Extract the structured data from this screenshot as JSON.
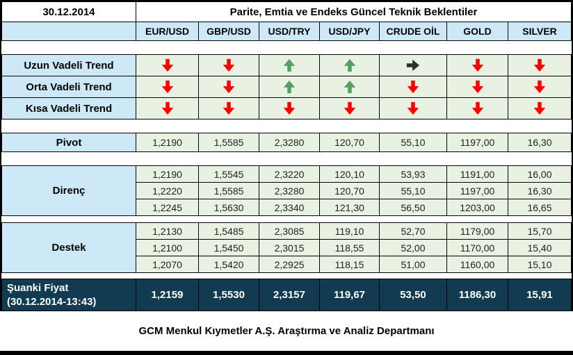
{
  "meta": {
    "date": "30.12.2014",
    "title": "Parite, Emtia ve Endeks Güncel Teknik Beklentiler",
    "footer": "GCM Menkul Kıymetler A.Ş. Araştırma ve Analiz Departmanı"
  },
  "columns": [
    "EUR/USD",
    "GBP/USD",
    "USD/TRY",
    "USD/JPY",
    "CRUDE OİL",
    "GOLD",
    "SILVER"
  ],
  "trends": {
    "rows": [
      {
        "label": "Uzun Vadeli Trend",
        "arrows": [
          "down",
          "down",
          "up",
          "up",
          "right",
          "down",
          "down"
        ]
      },
      {
        "label": "Orta Vadeli Trend",
        "arrows": [
          "down",
          "down",
          "up",
          "up",
          "down",
          "down",
          "down"
        ]
      },
      {
        "label": "Kısa Vadeli Trend",
        "arrows": [
          "down",
          "down",
          "down",
          "down",
          "down",
          "down",
          "down"
        ]
      }
    ]
  },
  "pivot": {
    "label": "Pivot",
    "values": [
      "1,2190",
      "1,5585",
      "2,3280",
      "120,70",
      "55,10",
      "1197,00",
      "16,30"
    ]
  },
  "resistance": {
    "label": "Direnç",
    "rows": [
      [
        "1,2190",
        "1,5545",
        "2,3220",
        "120,10",
        "53,93",
        "1191,00",
        "16,00"
      ],
      [
        "1,2220",
        "1,5585",
        "2,3280",
        "120,70",
        "55,10",
        "1197,00",
        "16,30"
      ],
      [
        "1,2245",
        "1,5630",
        "2,3340",
        "121,30",
        "56,50",
        "1203,00",
        "16,65"
      ]
    ]
  },
  "support": {
    "label": "Destek",
    "rows": [
      [
        "1,2130",
        "1,5485",
        "2,3085",
        "119,10",
        "52,70",
        "1179,00",
        "15,70"
      ],
      [
        "1,2100",
        "1,5450",
        "2,3015",
        "118,55",
        "52,00",
        "1170,00",
        "15,40"
      ],
      [
        "1,2070",
        "1,5420",
        "2,2925",
        "118,15",
        "51,00",
        "1160,00",
        "15,10"
      ]
    ]
  },
  "current": {
    "label_line1": "Şuanki Fiyat",
    "label_line2": "(30.12.2014-13:43)",
    "values": [
      "1,2159",
      "1,5530",
      "2,3157",
      "119,67",
      "53,50",
      "1186,30",
      "15,91"
    ]
  },
  "colors": {
    "header_blue": "#CDE8F6",
    "cell_green": "#E9F1E3",
    "current_bg": "#123A50",
    "border": "#000000",
    "arrow_down": "#FF0000",
    "arrow_up": "#569F63",
    "arrow_right": "#2F2F2F"
  }
}
